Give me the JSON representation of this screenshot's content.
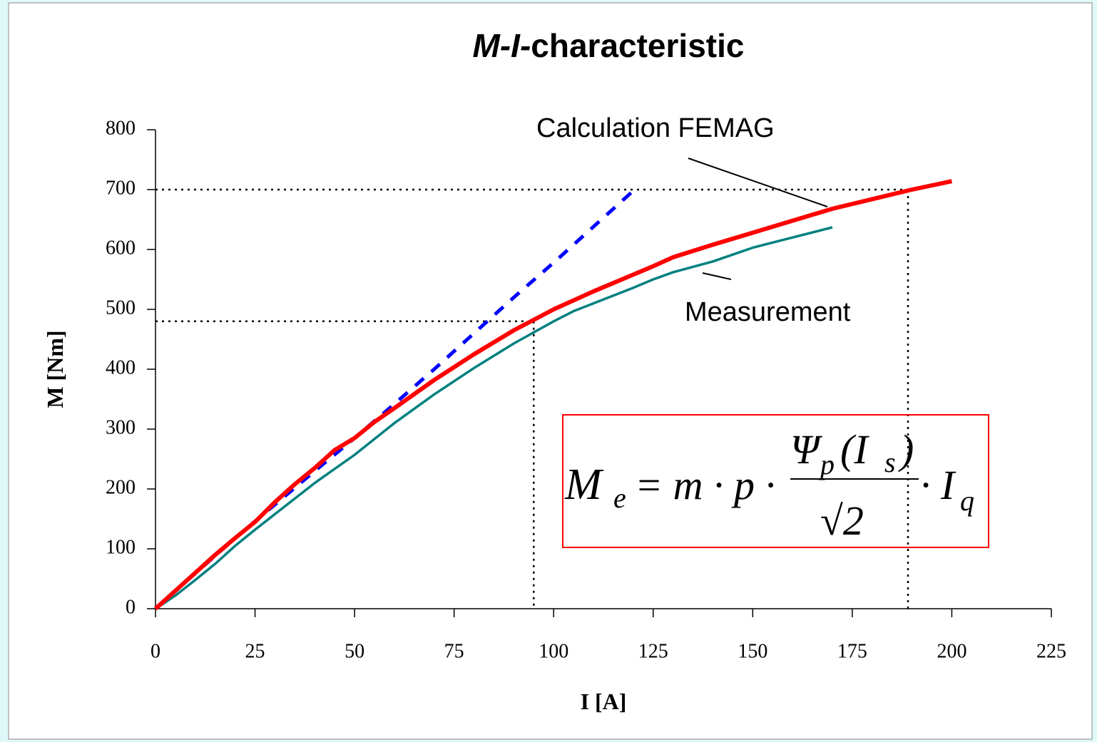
{
  "chart_data": {
    "type": "line",
    "title": [
      "M-I-",
      "characteristic"
    ],
    "x_label": "I [A]",
    "y_label": "M [Nm]",
    "xlim": [
      0,
      225
    ],
    "xticks": [
      0,
      25,
      50,
      75,
      100,
      125,
      150,
      175,
      200,
      225
    ],
    "ylim": [
      0,
      800
    ],
    "yticks": [
      0,
      100,
      200,
      300,
      400,
      500,
      600,
      700,
      800
    ],
    "grid": false,
    "series": [
      {
        "name": "Calculation FEMAG",
        "color": "#ff0000",
        "x": [
          0,
          5,
          10,
          15,
          20,
          25,
          30,
          35,
          40,
          45,
          50,
          55,
          60,
          70,
          80,
          90,
          100,
          110,
          120,
          125,
          130,
          140,
          150,
          160,
          170,
          180,
          190,
          200
        ],
        "values": [
          0,
          30,
          60,
          90,
          118,
          145,
          178,
          208,
          235,
          265,
          285,
          312,
          335,
          382,
          425,
          465,
          500,
          530,
          558,
          572,
          587,
          608,
          628,
          648,
          668,
          684,
          700,
          714
        ]
      },
      {
        "name": "Measurement",
        "color": "#008080",
        "x": [
          0,
          5,
          10,
          15,
          20,
          25,
          30,
          40,
          50,
          60,
          70,
          80,
          90,
          100,
          105,
          110,
          120,
          125,
          130,
          140,
          150,
          160,
          170
        ],
        "values": [
          0,
          22,
          48,
          75,
          105,
          132,
          158,
          210,
          257,
          310,
          358,
          402,
          443,
          480,
          497,
          510,
          536,
          550,
          562,
          580,
          603,
          620,
          637
        ]
      },
      {
        "color": "#0000ff",
        "dashed": true,
        "x": [
          0,
          20,
          40,
          50,
          60,
          70,
          80,
          90,
          100,
          110,
          120
        ],
        "values": [
          0,
          118,
          230,
          285,
          342,
          400,
          460,
          520,
          578,
          638,
          698
        ]
      }
    ],
    "reference_lines": [
      {
        "x": 189,
        "y": 700
      },
      {
        "x": 95,
        "y": 480
      }
    ],
    "formula": {
      "lhs": "M",
      "lhs_sub": "e",
      "eq": "= m · p ·",
      "num": "Ψ",
      "num_sub": "p",
      "num_arg": "(I",
      "num_arg_sub": "s",
      "num_close": ")",
      "den": "√2",
      "tail": "· I",
      "tail_sub": "q"
    }
  }
}
